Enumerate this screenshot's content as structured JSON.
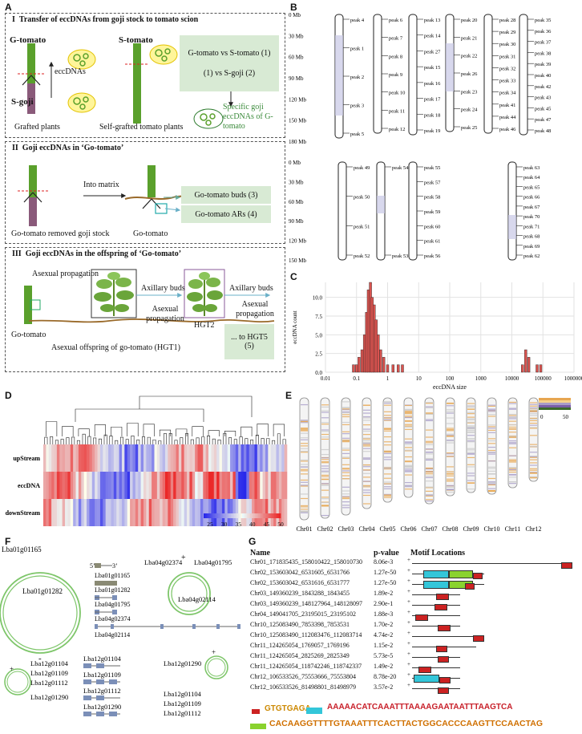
{
  "panels": {
    "A": "A",
    "B": "B",
    "C": "C",
    "D": "D",
    "E": "E",
    "F": "F",
    "G": "G"
  },
  "panelA": {
    "s1": {
      "title": "Transfer of eccDNAs from goji stock to tomato scion",
      "g_tomato": "G-tomato",
      "s_tomato": "S-tomato",
      "s_goji": "S-goji",
      "eccdnas": "eccDNAs",
      "grafted": "Grafted plants",
      "selfgrafted": "Self-grafted tomato plants",
      "box1a": "G-tomato vs S-tomato (1)",
      "box1b": "(1) vs S-goji (2)",
      "specific": "Specific goji eccDNAs of G-tomato"
    },
    "s2": {
      "title": "Goji eccDNAs in ‘Go-tomato’",
      "into": "Into matrix",
      "removed": "Go-tomato removed goji stock",
      "gotomato": "Go-tomato",
      "buds": "Go-tomato buds (3)",
      "ars": "Go-tomato ARs (4)"
    },
    "s3": {
      "title": "Goji eccDNAs in the offspring of ‘Go-tomato’",
      "asexual": "Asexual propagation",
      "axillary": "Axillary buds",
      "gotomato": "Go-tomato",
      "offspring": "Asexual offspring of go-tomato (HGT1)",
      "hgt2": "HGT2",
      "hgt5": "... to HGT5",
      "five": "(5)"
    }
  },
  "panelB": {
    "axis_top": [
      "0 Mb",
      "30 Mb",
      "60 Mb",
      "90 Mb",
      "120 Mb",
      "150 Mb",
      "180 Mb"
    ],
    "axis_bot": [
      "0 Mb",
      "30 Mb",
      "60 Mb",
      "90 Mb",
      "120 Mb",
      "150 Mb"
    ],
    "top_peaks": [
      [
        "peak 4",
        "peak 1",
        "peak 2",
        "peak 3",
        "peak 5"
      ],
      [
        "peak 6",
        "peak 7",
        "peak 8",
        "peak 9",
        "peak 10",
        "peak 11",
        "peak 12"
      ],
      [
        "peak 13",
        "peak 14",
        "peak 27",
        "peak 15",
        "peak 16",
        "peak 17",
        "peak 18",
        "peak 19"
      ],
      [
        "peak 20",
        "peak 21",
        "peak 22",
        "peak 26",
        "peak 23",
        "peak 24",
        "peak 25"
      ],
      [
        "peak 28",
        "peak 29",
        "peak 30",
        "peak 31",
        "peak 32",
        "peak 33",
        "peak 34",
        "peak 41",
        "peak 44",
        "peak 46"
      ],
      [
        "peak 35",
        "peak 36",
        "peak 37",
        "peak 38",
        "peak 39",
        "peak 40",
        "peak 42",
        "peak 43",
        "peak 45",
        "peak 47",
        "peak 48"
      ]
    ],
    "bot_peaks": [
      [
        "peak 49",
        "peak 50",
        "peak 51",
        "peak 52"
      ],
      [
        "peak 54",
        "peak 53"
      ],
      [
        "peak 55",
        "peak 57",
        "peak 58",
        "peak 59",
        "peak 60",
        "peak 61",
        "peak 56"
      ],
      [
        "peak 63",
        "peak 64",
        "peak 65",
        "peak 66",
        "peak 67",
        "peak 70",
        "peak 71",
        "peak 68",
        "peak 69",
        "peak 62"
      ]
    ]
  },
  "chart_data": {
    "type": "bar",
    "title": "",
    "xlabel": "eccDNA size",
    "ylabel": "eccDNA count",
    "xscale": "log",
    "xlim": [
      0.01,
      1000000
    ],
    "ylim": [
      0,
      12
    ],
    "xticks": [
      "0.01",
      "0.1",
      "1",
      "10",
      "100",
      "1000",
      "10000",
      "100000",
      "1000000"
    ],
    "yticks": [
      "0.0",
      "2.5",
      "5.0",
      "7.5",
      "10.0"
    ],
    "bins_x": [
      0.08,
      0.1,
      0.12,
      0.15,
      0.18,
      0.21,
      0.24,
      0.28,
      0.32,
      0.37,
      0.43,
      0.5,
      0.6,
      0.75,
      1.0,
      1.5,
      2.2,
      3.0,
      22000,
      28000,
      35000,
      65000,
      85000
    ],
    "values": [
      1,
      1,
      2,
      3,
      5,
      8,
      11,
      12,
      10,
      9,
      7,
      5,
      3,
      2,
      1,
      1,
      1,
      1,
      1,
      3,
      2,
      1,
      1
    ],
    "color": "#d9534f"
  },
  "panelD": {
    "rows": [
      "upStream",
      "eccDNA",
      "downStream"
    ],
    "legend": [
      "25",
      "30",
      "35",
      "40",
      "45",
      "50"
    ]
  },
  "panelE": {
    "chroms": [
      "Chr01",
      "Chr02",
      "Chr03",
      "Chr04",
      "Chr05",
      "Chr06",
      "Chr07",
      "Chr08",
      "Chr09",
      "Chr10",
      "Chr11",
      "Chr12"
    ],
    "legend_min": "0",
    "legend_max": "50"
  },
  "panelF": {
    "c1": [
      "Lba01g01165",
      "Lba01g01282"
    ],
    "c1m": "-",
    "c2": [
      "Lba04g02374",
      "Lba04g01795",
      "Lba04g02114"
    ],
    "c2p": "+",
    "genes_top": [
      "5’",
      "3’",
      "Lba01g01165",
      "Lba01g01282",
      "Lba04g01795",
      "Lba04g02374",
      "Lba04g02114"
    ],
    "c3": [
      "Lba12g01104",
      "Lba12g01109",
      "Lba12g01112",
      "Lba12g01290"
    ],
    "c3p": "+",
    "genes_bot": [
      "Lba12g01104",
      "Lba12g01109",
      "Lba12g01112",
      "Lba12g01290"
    ],
    "c4": [
      "Lba12g01290",
      "Lba12g01104",
      "Lba12g01109",
      "Lba12g01112"
    ],
    "c4p": "+"
  },
  "panelG": {
    "headers": [
      "Name",
      "p-value",
      "Motif Locations"
    ],
    "rows": [
      [
        "Chr01_171835435_158010422_158010730",
        "8.06e-3",
        "+"
      ],
      [
        "Chr02_153603042_6531605_6531766",
        "1.27e-50",
        "+"
      ],
      [
        "Chr02_153603042_6531616_6531777",
        "1.27e-50",
        "+"
      ],
      [
        "Chr03_149360239_1843288_1843455",
        "1.89e-2",
        "+"
      ],
      [
        "Chr03_149360239_148127964_148128097",
        "2.90e-1",
        "+"
      ],
      [
        "Chr04_149041705_23195015_23195102",
        "1.88e-3",
        "+"
      ],
      [
        "Chr10_125083490_7853398_7853531",
        "1.70e-2",
        "+"
      ],
      [
        "Chr10_125083490_112083476_112083714",
        "4.74e-2",
        "+"
      ],
      [
        "Chr11_124265054_1769057_1769196",
        "1.15e-2",
        "+"
      ],
      [
        "Chr11_124265054_2825269_2825349",
        "5.73e-5",
        "+"
      ],
      [
        "Chr11_124265054_118742246_118742337",
        "1.49e-2",
        "+"
      ],
      [
        "Chr12_106533526_75553666_75553804",
        "8.78e-20",
        "+"
      ],
      [
        "Chr12_106533526_81498801_81498979",
        "3.57e-2",
        "+"
      ]
    ],
    "logo1": "GTGTGAGA",
    "logo2": "AAAAACATCAAATTTAAAAGAATAATTTAAGTCA",
    "logo3": "CACAAGGTTTTGTAAATTTCACTTACTGGCACCCAAGTTCCAACTAG",
    "colors": {
      "red": "#cc2222",
      "cyan": "#33c6d9",
      "green": "#8ad22e"
    }
  }
}
